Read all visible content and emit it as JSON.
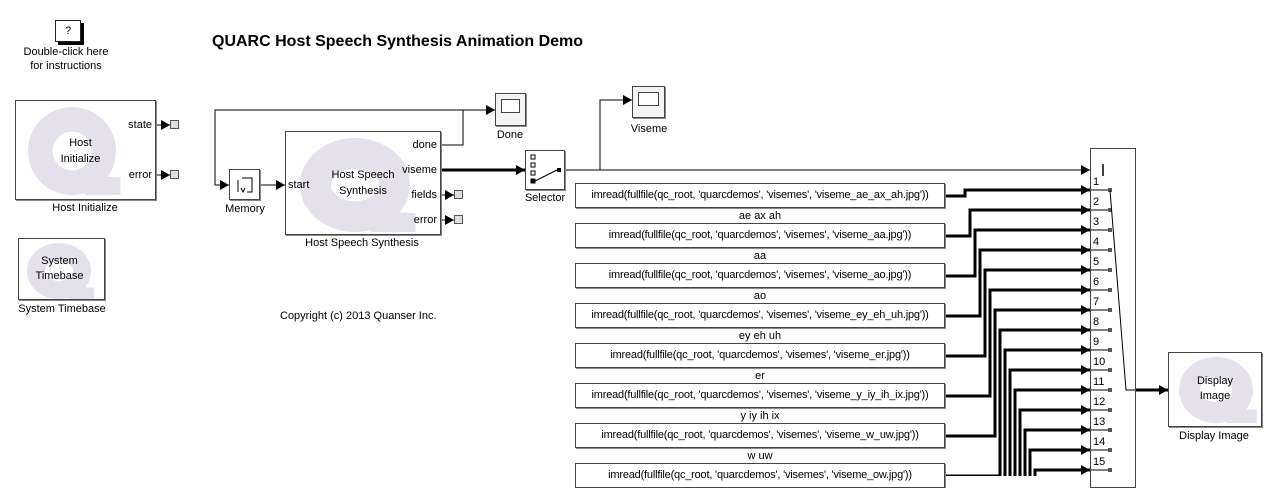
{
  "title": "QUARC Host Speech Synthesis Animation Demo",
  "help": {
    "icon_text": "?",
    "line1": "Double-click here",
    "line2": "for instructions"
  },
  "copyright": "Copyright (c) 2013 Quanser Inc.",
  "host_initialize": {
    "inner1": "Host",
    "inner2": "Initialize",
    "label": "Host Initialize",
    "ports": [
      "state",
      "error"
    ]
  },
  "system_timebase": {
    "inner1": "System",
    "inner2": "Timebase",
    "label": "System Timebase"
  },
  "memory": {
    "label": "Memory"
  },
  "host_speech_synthesis": {
    "inner1": "Host Speech",
    "inner2": "Synthesis",
    "label": "Host Speech Synthesis",
    "input": "start",
    "ports": [
      "done",
      "viseme",
      "fields",
      "error"
    ]
  },
  "done_scope": {
    "label": "Done"
  },
  "viseme_scope": {
    "label": "Viseme"
  },
  "selector": {
    "label": "Selector"
  },
  "display_image": {
    "inner1": "Display",
    "inner2": "Image",
    "label": "Display Image"
  },
  "image_constants": [
    {
      "expr": "imread(fullfile(qc_root, 'quarcdemos', 'visemes', 'viseme_ae_ax_ah.jpg'))",
      "label": "ae ax ah"
    },
    {
      "expr": "imread(fullfile(qc_root, 'quarcdemos', 'visemes', 'viseme_aa.jpg'))",
      "label": "aa"
    },
    {
      "expr": "imread(fullfile(qc_root, 'quarcdemos', 'visemes', 'viseme_ao.jpg'))",
      "label": "ao"
    },
    {
      "expr": "imread(fullfile(qc_root, 'quarcdemos', 'visemes', 'viseme_ey_eh_uh.jpg'))",
      "label": "ey eh uh"
    },
    {
      "expr": "imread(fullfile(qc_root, 'quarcdemos', 'visemes', 'viseme_er.jpg'))",
      "label": "er"
    },
    {
      "expr": "imread(fullfile(qc_root, 'quarcdemos', 'visemes', 'viseme_y_iy_ih_ix.jpg'))",
      "label": "y iy ih ix"
    },
    {
      "expr": "imread(fullfile(qc_root, 'quarcdemos', 'visemes', 'viseme_w_uw.jpg'))",
      "label": "w uw"
    },
    {
      "expr": "imread(fullfile(qc_root, 'quarcdemos', 'visemes', 'viseme_ow.jpg'))",
      "label": ""
    }
  ],
  "multiport_switch_ports": [
    "1",
    "2",
    "3",
    "4",
    "5",
    "6",
    "7",
    "8",
    "9",
    "10",
    "11",
    "12",
    "13",
    "14",
    "15"
  ],
  "colors": {
    "line": "#000000",
    "block_border": "#444444",
    "watermark": "#e4e0ec"
  }
}
